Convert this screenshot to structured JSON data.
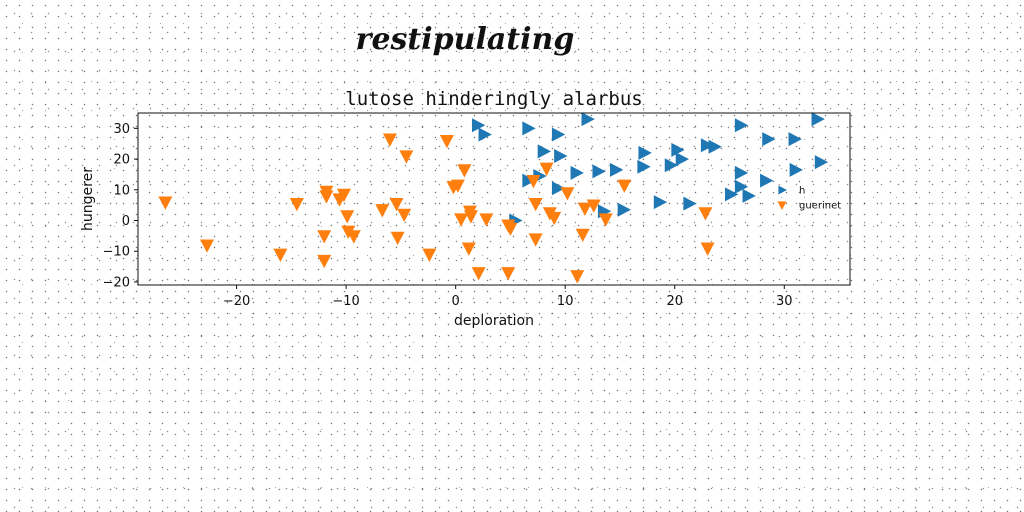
{
  "figure": {
    "suptitle": "restipulating"
  },
  "chart_data": {
    "type": "scatter",
    "title": "lutose hinderingly alarbus",
    "xlabel": "deploration",
    "ylabel": "hungerer",
    "xlim": [
      -29,
      36
    ],
    "ylim": [
      -21,
      35
    ],
    "xticks": [
      -20,
      -10,
      0,
      10,
      20,
      30
    ],
    "yticks": [
      -20,
      -10,
      0,
      10,
      20,
      30
    ],
    "grid": false,
    "legend_position": "right",
    "series": [
      {
        "name": "h",
        "marker": "triangle-right",
        "color": "#1f77b4",
        "points": [
          [
            2,
            31
          ],
          [
            2.6,
            28
          ],
          [
            6.6,
            30
          ],
          [
            9.3,
            28
          ],
          [
            12,
            33
          ],
          [
            8,
            22.5
          ],
          [
            9.5,
            21
          ],
          [
            6.6,
            13
          ],
          [
            7.6,
            14.5
          ],
          [
            9.3,
            10.5
          ],
          [
            11,
            15.5
          ],
          [
            13,
            16
          ],
          [
            14.6,
            16.5
          ],
          [
            13.5,
            3
          ],
          [
            15.3,
            3.5
          ],
          [
            5.4,
            0
          ],
          [
            18.6,
            6
          ],
          [
            21.3,
            5.5
          ],
          [
            17.2,
            22
          ],
          [
            17.1,
            17.5
          ],
          [
            19.6,
            18
          ],
          [
            20.2,
            23
          ],
          [
            20.6,
            20
          ],
          [
            22.9,
            24.5
          ],
          [
            23.6,
            24
          ],
          [
            26,
            31
          ],
          [
            28.5,
            26.5
          ],
          [
            30.9,
            26.5
          ],
          [
            33,
            33
          ],
          [
            33.3,
            19
          ],
          [
            31,
            16.5
          ],
          [
            26,
            15.5
          ],
          [
            28.3,
            13
          ],
          [
            25.1,
            8.5
          ],
          [
            26,
            11
          ],
          [
            26.7,
            8
          ]
        ]
      },
      {
        "name": "guerinet",
        "marker": "triangle-down",
        "color": "#ff7f0e",
        "points": [
          [
            -26.5,
            6
          ],
          [
            -22.7,
            -8
          ],
          [
            -16,
            -11
          ],
          [
            -14.5,
            5.5
          ],
          [
            -12,
            -5
          ],
          [
            -12,
            -13
          ],
          [
            -11.8,
            9.5
          ],
          [
            -11.8,
            8
          ],
          [
            -10.6,
            7
          ],
          [
            -10.2,
            8.5
          ],
          [
            -9.9,
            1.5
          ],
          [
            -9.8,
            -3.5
          ],
          [
            -9.3,
            -5
          ],
          [
            -6.7,
            3.5
          ],
          [
            -5.4,
            5.5
          ],
          [
            -5.3,
            -5.5
          ],
          [
            -4.7,
            2
          ],
          [
            -6,
            26.5
          ],
          [
            -4.5,
            21
          ],
          [
            -2.4,
            -11
          ],
          [
            -0.8,
            26
          ],
          [
            -0.2,
            11
          ],
          [
            0.2,
            11.5
          ],
          [
            0.8,
            16.5
          ],
          [
            0.5,
            0.5
          ],
          [
            1.4,
            1.5
          ],
          [
            1.3,
            3
          ],
          [
            1.2,
            -9
          ],
          [
            2.1,
            -17
          ],
          [
            2.8,
            0.5
          ],
          [
            4.8,
            -1.5
          ],
          [
            5,
            -2.5
          ],
          [
            4.8,
            -17
          ],
          [
            7.1,
            13
          ],
          [
            8.3,
            17
          ],
          [
            7.3,
            5.5
          ],
          [
            7.3,
            -6
          ],
          [
            8.6,
            2.5
          ],
          [
            9,
            1
          ],
          [
            10.2,
            9
          ],
          [
            11.6,
            -4.5
          ],
          [
            11.8,
            4
          ],
          [
            12.6,
            5
          ],
          [
            13.7,
            0.5
          ],
          [
            11.1,
            -18
          ],
          [
            15.4,
            11.5
          ],
          [
            22.8,
            2.5
          ],
          [
            23,
            -9
          ]
        ]
      }
    ]
  }
}
